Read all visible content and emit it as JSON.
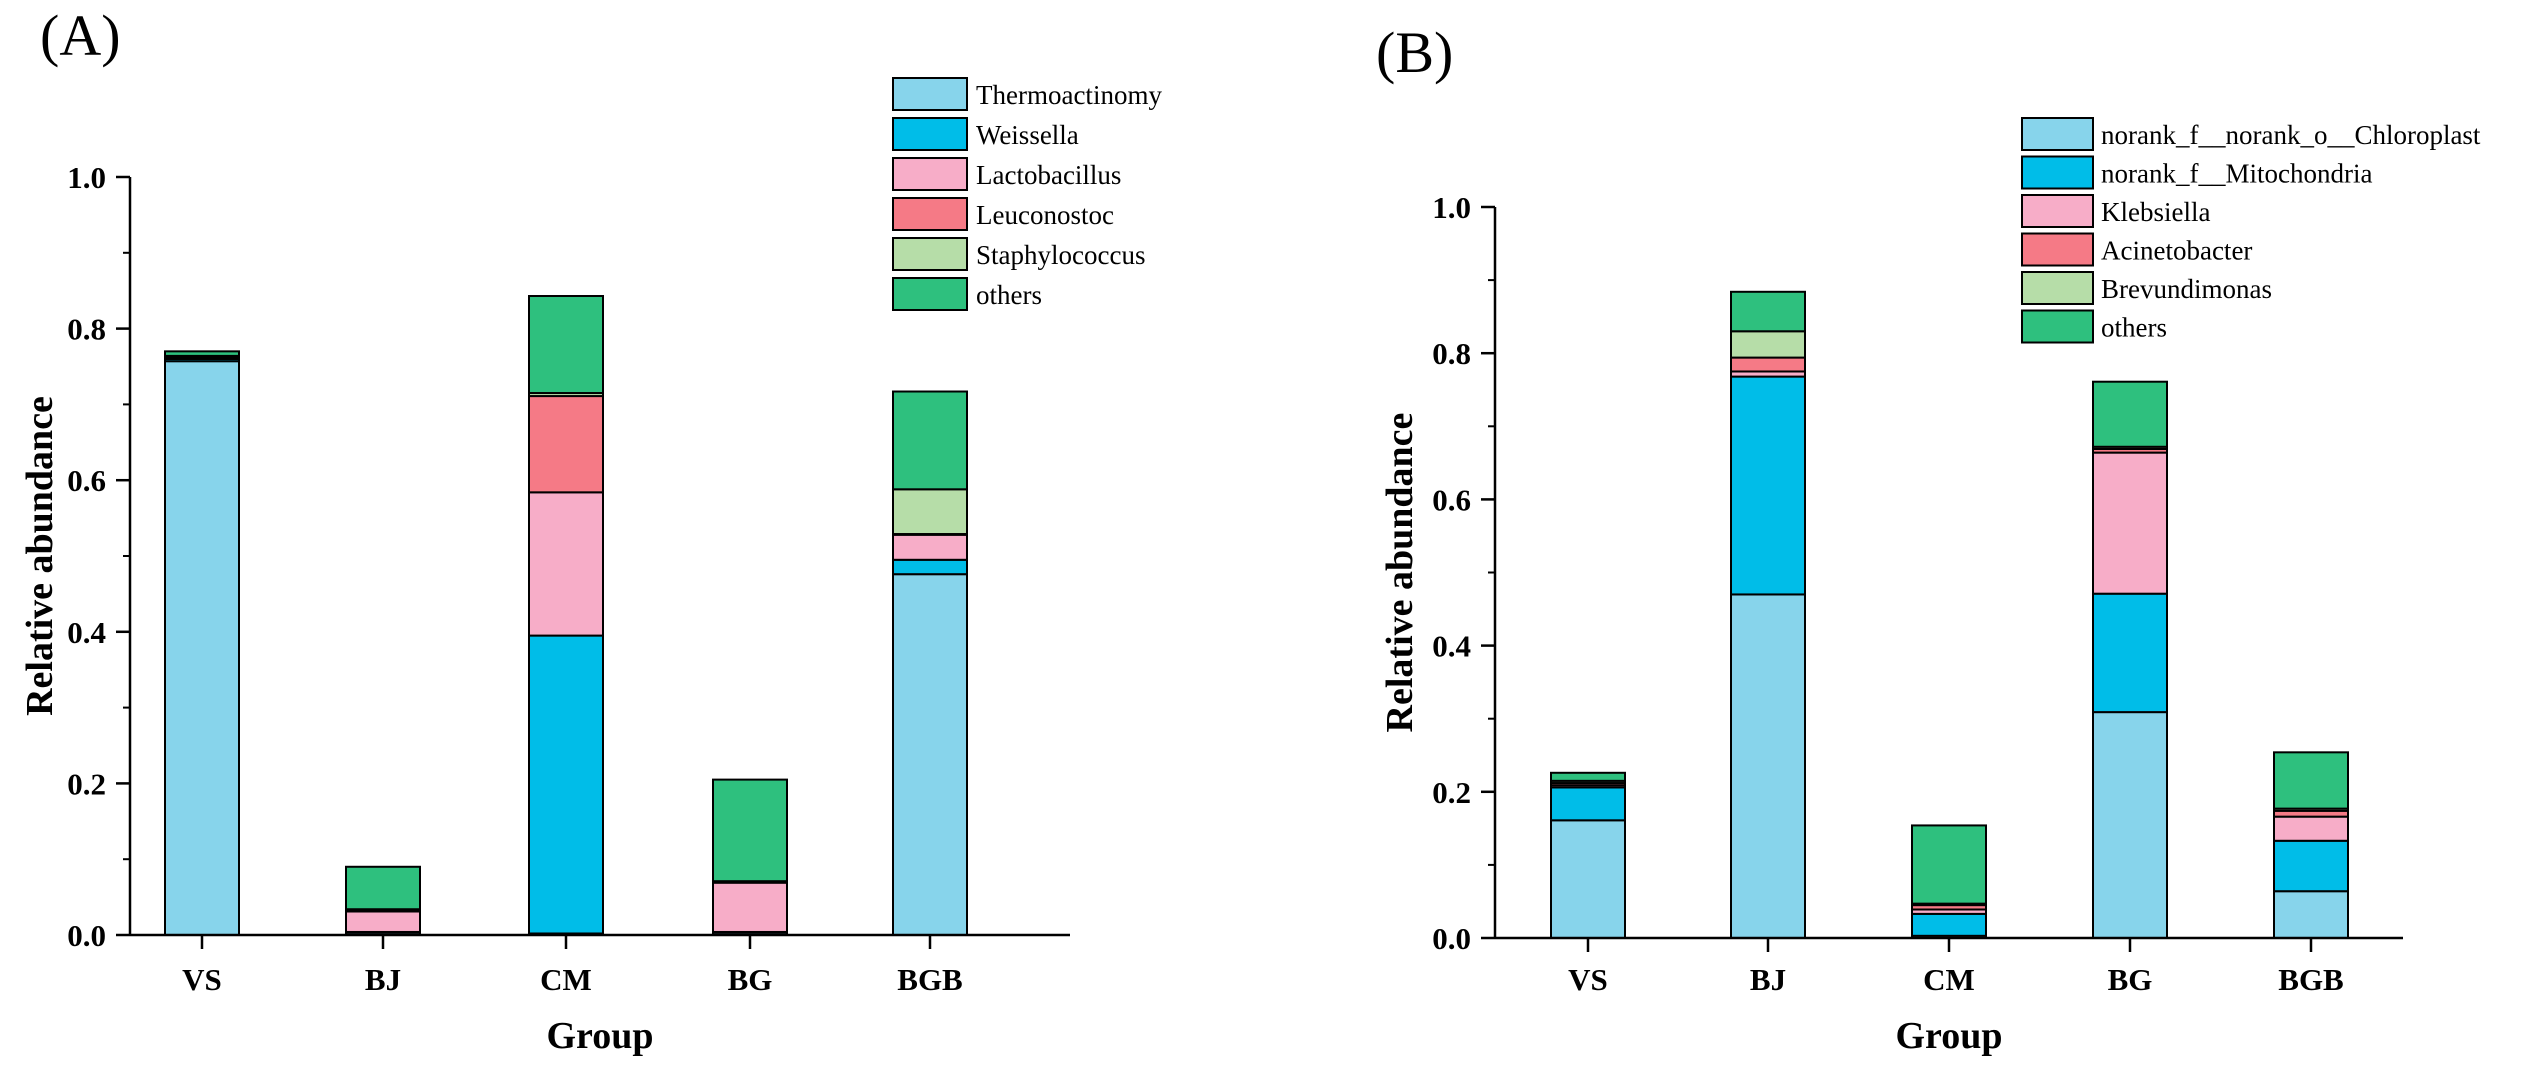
{
  "chart_data": [
    {
      "type": "bar",
      "stacked": true,
      "panel_label": "(A)",
      "xlabel": "Group",
      "ylabel": "Relative abundance",
      "ylim": [
        0,
        1.0
      ],
      "yticks": [
        "0.0",
        "0.2",
        "0.4",
        "0.6",
        "0.8",
        "1.0"
      ],
      "legend_position": "top-right",
      "categories": [
        "VS",
        "BJ",
        "CM",
        "BG",
        "BGB"
      ],
      "series": [
        {
          "name": "Thermoactinomy",
          "color": "#87d4eb",
          "values": [
            0.757,
            0.003,
            0.002,
            0.003,
            0.476
          ]
        },
        {
          "name": "Weissella",
          "color": "#00bde8",
          "values": [
            0.003,
            0.001,
            0.393,
            0.001,
            0.019
          ]
        },
        {
          "name": "Lactobacillus",
          "color": "#f7adc8",
          "values": [
            0.001,
            0.027,
            0.189,
            0.065,
            0.033
          ]
        },
        {
          "name": "Leuconostoc",
          "color": "#f57a86",
          "values": [
            0.002,
            0.002,
            0.127,
            0.001,
            0.001
          ]
        },
        {
          "name": "Staphylococcus",
          "color": "#b6dda8",
          "values": [
            0.001,
            0.001,
            0.004,
            0.001,
            0.059
          ]
        },
        {
          "name": "others",
          "color": "#2ec07e",
          "values": [
            0.006,
            0.056,
            0.128,
            0.134,
            0.129
          ]
        }
      ]
    },
    {
      "type": "bar",
      "stacked": true,
      "panel_label": "(B)",
      "xlabel": "Group",
      "ylabel": "Relative abundance",
      "ylim": [
        0,
        1.0
      ],
      "yticks": [
        "0.0",
        "0.2",
        "0.4",
        "0.6",
        "0.8",
        "1.0"
      ],
      "legend_position": "top-right",
      "categories": [
        "VS",
        "BJ",
        "CM",
        "BG",
        "BGB"
      ],
      "series": [
        {
          "name": "norank_f__norank_o__Chloroplast",
          "color": "#87d4eb",
          "values": [
            0.161,
            0.47,
            0.003,
            0.309,
            0.064
          ]
        },
        {
          "name": "norank_f__Mitochondria",
          "color": "#00bde8",
          "values": [
            0.045,
            0.298,
            0.03,
            0.162,
            0.069
          ]
        },
        {
          "name": "Klebsiella",
          "color": "#f7adc8",
          "values": [
            0.003,
            0.007,
            0.006,
            0.193,
            0.033
          ]
        },
        {
          "name": "Acinetobacter",
          "color": "#f57a86",
          "values": [
            0.003,
            0.019,
            0.006,
            0.005,
            0.008
          ]
        },
        {
          "name": "Brevundimonas",
          "color": "#b6dda8",
          "values": [
            0.003,
            0.036,
            0.002,
            0.003,
            0.003
          ]
        },
        {
          "name": "others",
          "color": "#2ec07e",
          "values": [
            0.011,
            0.054,
            0.107,
            0.089,
            0.077
          ]
        }
      ]
    }
  ]
}
